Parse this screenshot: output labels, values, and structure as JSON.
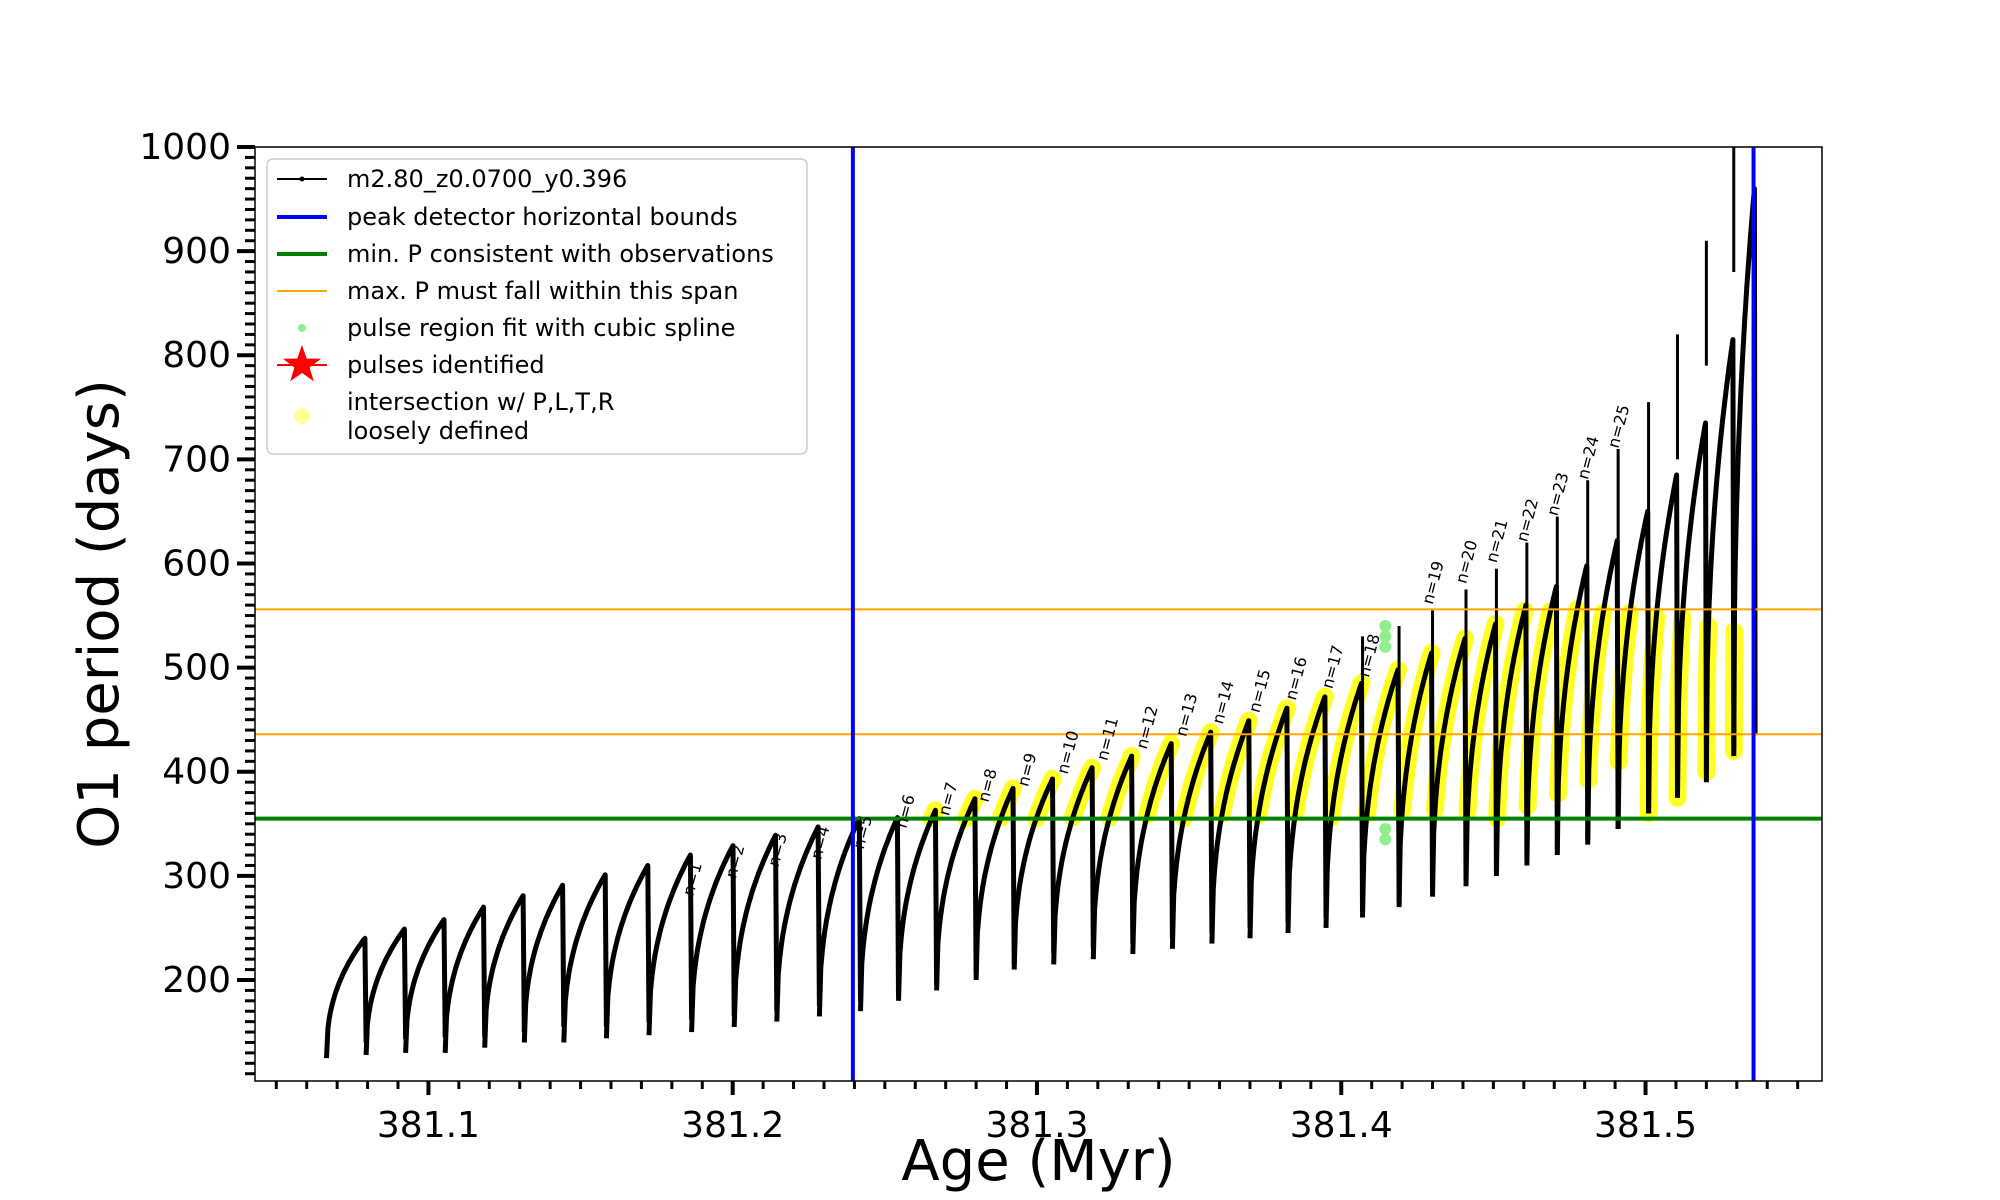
{
  "chart_data": {
    "type": "scatter",
    "title": "",
    "xlabel": "Age (Myr)",
    "ylabel": "O1 period (days)",
    "xlim": [
      381.043,
      381.558
    ],
    "ylim": [
      103,
      1000
    ],
    "x_ticks": [
      381.1,
      381.2,
      381.3,
      381.4,
      381.5
    ],
    "x_tick_labels": [
      "381.1",
      "381.2",
      "381.3",
      "381.4",
      "381.5"
    ],
    "y_ticks": [
      200,
      300,
      400,
      500,
      600,
      700,
      800,
      900,
      1000
    ],
    "y_tick_labels": [
      "200",
      "300",
      "400",
      "500",
      "600",
      "700",
      "800",
      "900",
      "1000"
    ],
    "grid": false,
    "legend_position": "upper-left",
    "legend": [
      {
        "label": "m2.80_z0.0700_y0.396",
        "marker": "line-dot",
        "color": "#000000"
      },
      {
        "label": "peak detector horizontal bounds",
        "marker": "line",
        "color": "#0000ff"
      },
      {
        "label": "min. P consistent with observations",
        "marker": "line",
        "color": "#008000"
      },
      {
        "label": "max. P must fall within this span",
        "marker": "thin-line",
        "color": "#ffa500"
      },
      {
        "label": "pulse region fit with cubic spline",
        "marker": "dot",
        "color": "#90ee90"
      },
      {
        "label": "pulses identified",
        "marker": "star",
        "color": "#ff0000"
      },
      {
        "label": "intersection w/ P,L,T,R\nloosely defined",
        "marker": "circle",
        "color": "#ffff99"
      }
    ],
    "vertical_lines": [
      {
        "x": 381.2395,
        "color": "#0000ff"
      },
      {
        "x": 381.5355,
        "color": "#0000ff"
      }
    ],
    "horizontal_lines": [
      {
        "y": 355,
        "color": "#008000"
      },
      {
        "y": 436,
        "color": "#ffa500"
      },
      {
        "y": 556,
        "color": "#ffa500"
      }
    ],
    "series": [
      {
        "name": "m2.80_z0.0700_y0.396",
        "kind": "sawtooth",
        "color": "#000000",
        "pulses": [
          {
            "x_start": 381.0665,
            "x_end": 381.0795,
            "y_min": 125,
            "y_max": 240
          },
          {
            "x_start": 381.0795,
            "x_end": 381.0925,
            "y_min": 128,
            "y_max": 249
          },
          {
            "x_start": 381.0925,
            "x_end": 381.1055,
            "y_min": 130,
            "y_max": 258
          },
          {
            "x_start": 381.1055,
            "x_end": 381.1185,
            "y_min": 130,
            "y_max": 270
          },
          {
            "x_start": 381.1185,
            "x_end": 381.1315,
            "y_min": 135,
            "y_max": 281
          },
          {
            "x_start": 381.1315,
            "x_end": 381.1445,
            "y_min": 140,
            "y_max": 291
          },
          {
            "x_start": 381.1445,
            "x_end": 381.1585,
            "y_min": 140,
            "y_max": 301
          },
          {
            "x_start": 381.1585,
            "x_end": 381.1725,
            "y_min": 144,
            "y_max": 310
          },
          {
            "x_start": 381.1725,
            "x_end": 381.1865,
            "y_min": 147,
            "y_max": 320
          },
          {
            "x_start": 381.1865,
            "x_end": 381.2005,
            "y_min": 150,
            "y_max": 329
          },
          {
            "x_start": 381.2005,
            "x_end": 381.2145,
            "y_min": 155,
            "y_max": 339
          },
          {
            "x_start": 381.2145,
            "x_end": 381.2285,
            "y_min": 160,
            "y_max": 347
          },
          {
            "x_start": 381.2285,
            "x_end": 381.242,
            "y_min": 165,
            "y_max": 355
          },
          {
            "x_start": 381.242,
            "x_end": 381.2545,
            "y_min": 170,
            "y_max": 356
          },
          {
            "x_start": 381.2545,
            "x_end": 381.267,
            "y_min": 180,
            "y_max": 363
          },
          {
            "x_start": 381.267,
            "x_end": 381.28,
            "y_min": 190,
            "y_max": 374
          },
          {
            "x_start": 381.28,
            "x_end": 381.2925,
            "y_min": 200,
            "y_max": 384
          },
          {
            "x_start": 381.2925,
            "x_end": 381.3055,
            "y_min": 210,
            "y_max": 393
          },
          {
            "x_start": 381.3055,
            "x_end": 381.3185,
            "y_min": 215,
            "y_max": 404
          },
          {
            "x_start": 381.3185,
            "x_end": 381.3315,
            "y_min": 220,
            "y_max": 415
          },
          {
            "x_start": 381.3315,
            "x_end": 381.3445,
            "y_min": 225,
            "y_max": 427
          },
          {
            "x_start": 381.3445,
            "x_end": 381.3575,
            "y_min": 230,
            "y_max": 438
          },
          {
            "x_start": 381.3575,
            "x_end": 381.37,
            "y_min": 235,
            "y_max": 449
          },
          {
            "x_start": 381.37,
            "x_end": 381.3825,
            "y_min": 240,
            "y_max": 461
          },
          {
            "x_start": 381.3825,
            "x_end": 381.395,
            "y_min": 245,
            "y_max": 472
          },
          {
            "x_start": 381.395,
            "x_end": 381.407,
            "y_min": 250,
            "y_max": 485
          },
          {
            "x_start": 381.407,
            "x_end": 381.419,
            "y_min": 260,
            "y_max": 498
          },
          {
            "x_start": 381.419,
            "x_end": 381.43,
            "y_min": 270,
            "y_max": 514
          },
          {
            "x_start": 381.43,
            "x_end": 381.441,
            "y_min": 280,
            "y_max": 528
          },
          {
            "x_start": 381.441,
            "x_end": 381.451,
            "y_min": 290,
            "y_max": 542
          },
          {
            "x_start": 381.451,
            "x_end": 381.461,
            "y_min": 300,
            "y_max": 560
          },
          {
            "x_start": 381.461,
            "x_end": 381.471,
            "y_min": 310,
            "y_max": 578
          },
          {
            "x_start": 381.471,
            "x_end": 381.481,
            "y_min": 320,
            "y_max": 598
          },
          {
            "x_start": 381.481,
            "x_end": 381.491,
            "y_min": 330,
            "y_max": 622
          },
          {
            "x_start": 381.491,
            "x_end": 381.501,
            "y_min": 345,
            "y_max": 650
          },
          {
            "x_start": 381.501,
            "x_end": 381.5105,
            "y_min": 360,
            "y_max": 685
          },
          {
            "x_start": 381.5105,
            "x_end": 381.52,
            "y_min": 375,
            "y_max": 735
          },
          {
            "x_start": 381.52,
            "x_end": 381.529,
            "y_min": 400,
            "y_max": 815
          },
          {
            "x_start": 381.529,
            "x_end": 381.536,
            "y_min": 420,
            "y_max": 960
          }
        ]
      },
      {
        "name": "intersection w/ P,L,T,R loosely defined",
        "kind": "highlight",
        "color": "#ffff00",
        "x_range": [
          381.2395,
          381.5355
        ],
        "y_range": [
          355,
          556
        ]
      },
      {
        "name": "pulse region fit with cubic spline",
        "kind": "points",
        "color": "#90ee90",
        "points": [
          {
            "x": 381.4145,
            "y": 540
          },
          {
            "x": 381.4145,
            "y": 530
          },
          {
            "x": 381.4145,
            "y": 520
          },
          {
            "x": 381.4145,
            "y": 345
          },
          {
            "x": 381.4145,
            "y": 335
          }
        ]
      }
    ],
    "pulse_peak_spikes": [
      {
        "x": 381.407,
        "y": 530
      },
      {
        "x": 381.419,
        "y": 540
      },
      {
        "x": 381.43,
        "y": 555
      },
      {
        "x": 381.441,
        "y": 575
      },
      {
        "x": 381.451,
        "y": 595
      },
      {
        "x": 381.461,
        "y": 620
      },
      {
        "x": 381.471,
        "y": 645
      },
      {
        "x": 381.481,
        "y": 680
      },
      {
        "x": 381.491,
        "y": 710
      },
      {
        "x": 381.501,
        "y": 755
      },
      {
        "x": 381.5105,
        "y": 820
      },
      {
        "x": 381.52,
        "y": 910
      },
      {
        "x": 381.529,
        "y": 1000
      }
    ],
    "annotations": [
      {
        "text": "n=1",
        "x": 381.187,
        "y": 280
      },
      {
        "text": "n=2",
        "x": 381.201,
        "y": 297
      },
      {
        "text": "n=3",
        "x": 381.215,
        "y": 308
      },
      {
        "text": "n=4",
        "x": 381.229,
        "y": 315
      },
      {
        "text": "n=5",
        "x": 381.243,
        "y": 325
      },
      {
        "text": "n=6",
        "x": 381.257,
        "y": 345
      },
      {
        "text": "n=7",
        "x": 381.271,
        "y": 357
      },
      {
        "text": "n=8",
        "x": 381.284,
        "y": 370
      },
      {
        "text": "n=9",
        "x": 381.297,
        "y": 385
      },
      {
        "text": "n=10",
        "x": 381.31,
        "y": 397
      },
      {
        "text": "n=11",
        "x": 381.323,
        "y": 410
      },
      {
        "text": "n=12",
        "x": 381.336,
        "y": 421
      },
      {
        "text": "n=13",
        "x": 381.349,
        "y": 433
      },
      {
        "text": "n=14",
        "x": 381.361,
        "y": 445
      },
      {
        "text": "n=15",
        "x": 381.373,
        "y": 456
      },
      {
        "text": "n=16",
        "x": 381.385,
        "y": 468
      },
      {
        "text": "n=17",
        "x": 381.397,
        "y": 479
      },
      {
        "text": "n=18",
        "x": 381.409,
        "y": 490
      },
      {
        "text": "n=19",
        "x": 381.43,
        "y": 560
      },
      {
        "text": "n=20",
        "x": 381.441,
        "y": 580
      },
      {
        "text": "n=21",
        "x": 381.451,
        "y": 600
      },
      {
        "text": "n=22",
        "x": 381.461,
        "y": 620
      },
      {
        "text": "n=23",
        "x": 381.471,
        "y": 645
      },
      {
        "text": "n=24",
        "x": 381.481,
        "y": 680
      },
      {
        "text": "n=25",
        "x": 381.491,
        "y": 710
      }
    ]
  }
}
